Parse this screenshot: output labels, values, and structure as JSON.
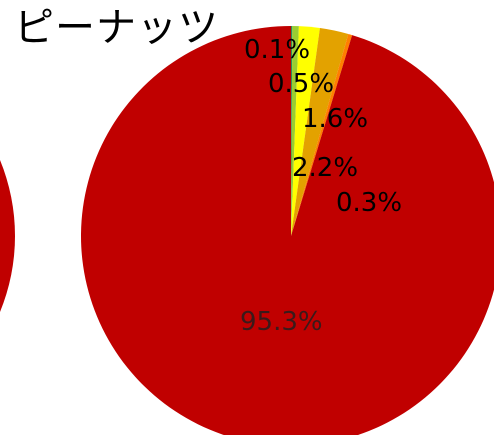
{
  "chart_data": {
    "type": "pie",
    "title": "ピーナッツ",
    "start_angle_deg": 0,
    "direction": "clockwise",
    "slices": [
      {
        "value": 0.1,
        "label": "0.1%",
        "color": "#2e8b57"
      },
      {
        "value": 0.5,
        "label": "0.5%",
        "color": "#9acd32"
      },
      {
        "value": 1.6,
        "label": "1.6%",
        "color": "#ffff00"
      },
      {
        "value": 2.2,
        "label": "2.2%",
        "color": "#e3a200"
      },
      {
        "value": 0.3,
        "label": "0.3%",
        "color": "#ff7f00"
      },
      {
        "value": 95.3,
        "label": "95.3%",
        "color": "#c00000"
      }
    ],
    "left_partial_pie_color": "#c00000"
  }
}
